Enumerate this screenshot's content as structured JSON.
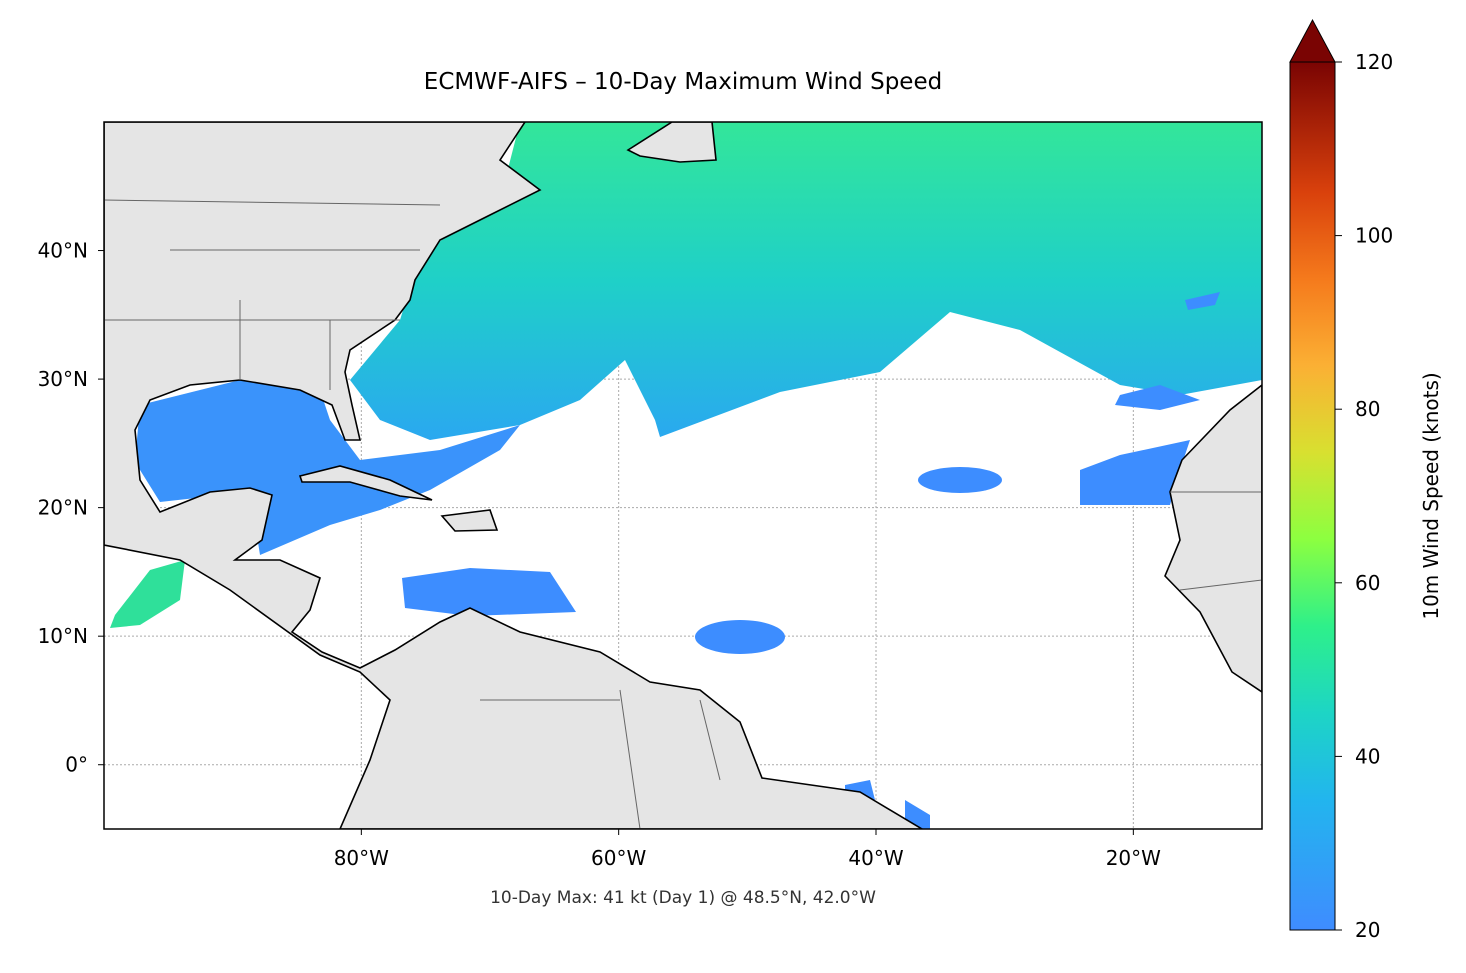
{
  "chart_data": {
    "type": "map",
    "title": "ECMWF-AIFS – 10-Day Maximum Wind Speed",
    "xlim": [
      -100,
      -10
    ],
    "ylim": [
      -5,
      50
    ],
    "xticks": [
      {
        "value": -80,
        "label": "80°W"
      },
      {
        "value": -60,
        "label": "60°W"
      },
      {
        "value": -40,
        "label": "40°W"
      },
      {
        "value": -20,
        "label": "20°W"
      }
    ],
    "yticks": [
      {
        "value": 0,
        "label": "0°"
      },
      {
        "value": 10,
        "label": "10°N"
      },
      {
        "value": 20,
        "label": "20°N"
      },
      {
        "value": 30,
        "label": "30°N"
      },
      {
        "value": 40,
        "label": "40°N"
      }
    ],
    "grid": true,
    "colorbar": {
      "label": "10m Wind Speed (knots)",
      "lim": [
        20,
        120
      ],
      "ticks": [
        20,
        40,
        60,
        80,
        100,
        120
      ],
      "extend": "max"
    },
    "annotation": "10-Day Max: 41 kt (Day 1) @ 48.5°N, 42.0°W"
  }
}
